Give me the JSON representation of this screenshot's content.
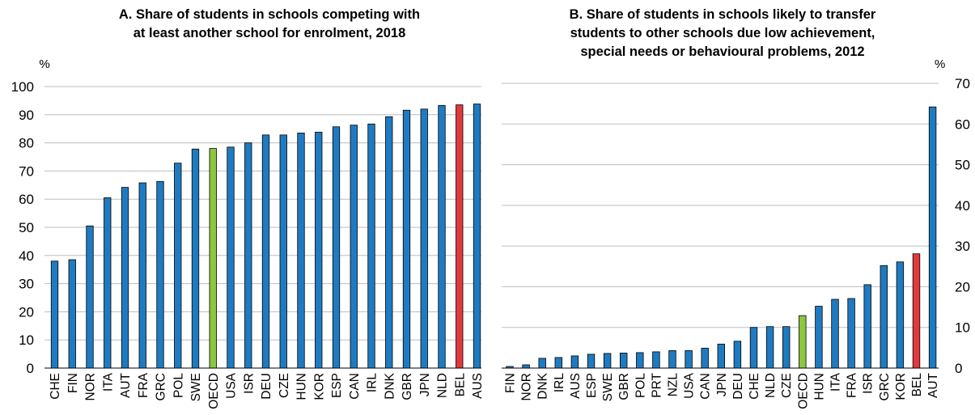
{
  "colors": {
    "default": "#1f7bc1",
    "oecd": "#8dc63f",
    "highlight": "#e03a3e"
  },
  "chart_data": [
    {
      "type": "bar",
      "title_lines": [
        "A. Share of students in schools competing with",
        "at least another school for enrolment, 2018"
      ],
      "unit": "%",
      "ylim": [
        0,
        100
      ],
      "yticks": [
        0,
        10,
        20,
        30,
        40,
        50,
        60,
        70,
        80,
        90,
        100
      ],
      "y_axis_side": "left",
      "grid": true,
      "categories": [
        "CHE",
        "FIN",
        "NOR",
        "ITA",
        "AUT",
        "FRA",
        "GRC",
        "POL",
        "SWE",
        "OECD",
        "USA",
        "ISR",
        "DEU",
        "CZE",
        "HUN",
        "KOR",
        "ESP",
        "CAN",
        "IRL",
        "DNK",
        "GBR",
        "JPN",
        "NLD",
        "BEL",
        "AUS"
      ],
      "values": [
        38,
        38.5,
        50.5,
        60.5,
        64.2,
        65.8,
        66.3,
        72.8,
        77.8,
        78,
        78.5,
        80,
        82.8,
        82.8,
        83.5,
        83.8,
        85.7,
        86.3,
        86.7,
        89.3,
        91.6,
        92,
        93.3,
        93.5,
        93.8
      ],
      "highlight": {
        "OECD": "oecd",
        "BEL": "highlight"
      }
    },
    {
      "type": "bar",
      "title_lines": [
        "B. Share of students in schools likely to transfer",
        "students to other schools due low achievement,",
        "special needs or behavioural problems, 2012"
      ],
      "unit": "%",
      "ylim": [
        0,
        70
      ],
      "yticks": [
        0,
        10,
        20,
        30,
        40,
        50,
        60,
        70
      ],
      "y_axis_side": "right",
      "grid": true,
      "categories": [
        "FIN",
        "NOR",
        "DNK",
        "IRL",
        "AUS",
        "ESP",
        "SWE",
        "GBR",
        "POL",
        "PRT",
        "NZL",
        "USA",
        "CAN",
        "JPN",
        "DEU",
        "CHE",
        "NLD",
        "CZE",
        "OECD",
        "HUN",
        "ITA",
        "FRA",
        "ISR",
        "GRC",
        "KOR",
        "BEL",
        "AUT"
      ],
      "values": [
        0.4,
        0.8,
        2.4,
        2.6,
        3.0,
        3.4,
        3.6,
        3.7,
        3.8,
        4.0,
        4.3,
        4.3,
        4.9,
        5.9,
        6.6,
        10.0,
        10.2,
        10.2,
        12.9,
        15.2,
        16.9,
        17.1,
        20.5,
        25.2,
        26.1,
        28.1,
        64.2
      ],
      "highlight": {
        "OECD": "oecd",
        "BEL": "highlight"
      }
    }
  ]
}
